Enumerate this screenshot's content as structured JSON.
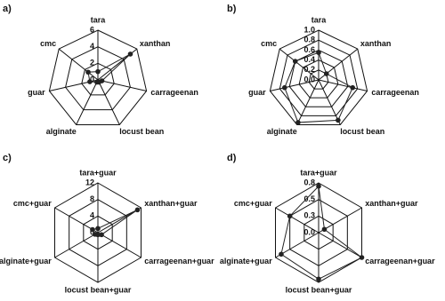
{
  "chart_data": [
    {
      "type": "radar",
      "label": "a)",
      "color": "#222",
      "categories": [
        "tara",
        "xanthan",
        "carrageenan",
        "locust bean",
        "alginate",
        "guar",
        "cmc"
      ],
      "values": [
        1,
        5,
        0.5,
        0.3,
        0.3,
        1,
        1.5
      ],
      "ylim": [
        0,
        6
      ],
      "yticks": [
        0,
        2,
        4,
        6
      ]
    },
    {
      "type": "radar",
      "label": "b)",
      "color": "#222",
      "categories": [
        "tara",
        "xanthan",
        "carrageenan",
        "locust bean",
        "alginate",
        "guar",
        "cmc"
      ],
      "values": [
        0.55,
        0.2,
        0.7,
        0.9,
        0.95,
        0.7,
        0.6
      ],
      "ylim": [
        0,
        1
      ],
      "yticks": [
        {
          "value": 0,
          "label": "0.0"
        },
        0.2,
        0.4,
        0.6,
        0.8,
        {
          "value": 1,
          "label": "1.0"
        }
      ]
    },
    {
      "type": "radar",
      "label": "c)",
      "color": "#222",
      "categories": [
        "tara+guar",
        "xanthan+guar",
        "carrageenan+guar",
        "locust bean+guar",
        "alginate+guar",
        "cmc+guar"
      ],
      "values": [
        1,
        11,
        1,
        0.5,
        0.8,
        1.5
      ],
      "ylim": [
        0,
        12
      ],
      "yticks": [
        0,
        4,
        8,
        12
      ]
    },
    {
      "type": "radar",
      "label": "d)",
      "color": "#222",
      "categories": [
        "tara+guar",
        "xanthan+guar",
        "carrageenan+guar",
        "locust bean+guar",
        "alginate+guar",
        "cmc+guar"
      ],
      "values": [
        0.7,
        0.1,
        0.75,
        0.7,
        0.65,
        0.5
      ],
      "ylim": [
        0,
        0.75
      ],
      "yticks": [
        {
          "value": 0,
          "label": "0.0"
        },
        {
          "value": 0.25,
          "label": "0.3"
        },
        0.5,
        {
          "value": 0.75,
          "label": "0.8"
        }
      ]
    }
  ]
}
